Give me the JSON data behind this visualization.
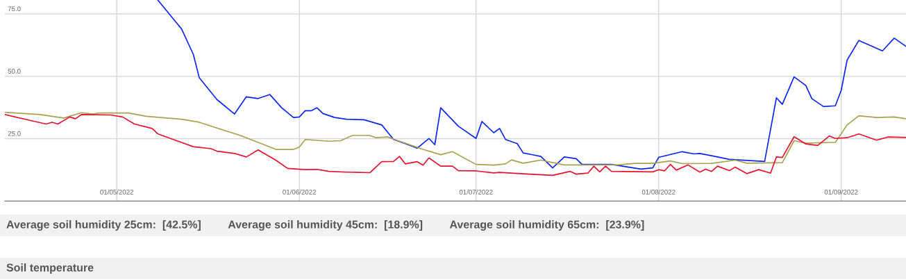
{
  "chart_data": {
    "type": "line",
    "xlim": [
      "2022-04-12",
      "2022-09-12"
    ],
    "xticks": [
      {
        "value": "2022-05-01",
        "label": "01/05/2022"
      },
      {
        "value": "2022-06-01",
        "label": "01/06/2022"
      },
      {
        "value": "2022-07-01",
        "label": "01/07/2022"
      },
      {
        "value": "2022-08-01",
        "label": "01/08/2022"
      },
      {
        "value": "2022-09-01",
        "label": "01/09/2022"
      }
    ],
    "ylim": [
      0,
      80.6
    ],
    "yticks": [
      {
        "value": 25,
        "label": "25.0"
      },
      {
        "value": 50,
        "label": "50.0"
      },
      {
        "value": 75,
        "label": "75.0"
      }
    ],
    "grid": true,
    "marker": "none",
    "line_style": "solid",
    "series": [
      {
        "color": "#0b24fb",
        "x": [
          "2022-05-08",
          "2022-05-12",
          "2022-05-14",
          "2022-05-15",
          "2022-05-18",
          "2022-05-21",
          "2022-05-23",
          "2022-05-25",
          "2022-05-27",
          "2022-05-29",
          "2022-05-31",
          "2022-06-01",
          "2022-06-02",
          "2022-06-03",
          "2022-06-04",
          "2022-06-05",
          "2022-06-07",
          "2022-06-09",
          "2022-06-12",
          "2022-06-15",
          "2022-06-17",
          "2022-06-19",
          "2022-06-21",
          "2022-06-23",
          "2022-06-24",
          "2022-06-25",
          "2022-06-28",
          "2022-07-01",
          "2022-07-02",
          "2022-07-04",
          "2022-07-05",
          "2022-07-06",
          "2022-07-08",
          "2022-07-09",
          "2022-07-12",
          "2022-07-14",
          "2022-07-16",
          "2022-07-18",
          "2022-07-19",
          "2022-07-23",
          "2022-07-24",
          "2022-07-29",
          "2022-07-31",
          "2022-08-01",
          "2022-08-05",
          "2022-08-07",
          "2022-08-08",
          "2022-08-11",
          "2022-08-13",
          "2022-08-16",
          "2022-08-19",
          "2022-08-21",
          "2022-08-22",
          "2022-08-24",
          "2022-08-26",
          "2022-08-27",
          "2022-08-29",
          "2022-08-31",
          "2022-09-01",
          "2022-09-02",
          "2022-09-04",
          "2022-09-08",
          "2022-09-10",
          "2022-09-12"
        ],
        "values": [
          80.5,
          69.0,
          58.8,
          49.5,
          40.7,
          34.9,
          41.8,
          41.1,
          42.7,
          37.4,
          33.5,
          33.7,
          36.2,
          36.2,
          37.4,
          35.1,
          33.5,
          32.8,
          32.6,
          30.5,
          24.7,
          23.0,
          21.2,
          25.1,
          22.6,
          37.4,
          30.0,
          25.1,
          31.9,
          27.4,
          29.1,
          24.7,
          23.0,
          19.3,
          17.9,
          13.3,
          17.7,
          17.0,
          14.7,
          14.7,
          14.7,
          12.8,
          13.3,
          17.5,
          19.8,
          18.9,
          19.1,
          17.7,
          16.7,
          16.3,
          15.9,
          41.4,
          38.8,
          49.8,
          46.3,
          41.1,
          37.9,
          38.2,
          44.4,
          56.5,
          64.4,
          60.2,
          65.3,
          62.0
        ]
      },
      {
        "color": "#a8a050",
        "x": [
          "2022-04-12",
          "2022-04-18",
          "2022-04-22",
          "2022-04-25",
          "2022-04-27",
          "2022-04-28",
          "2022-05-03",
          "2022-05-06",
          "2022-05-12",
          "2022-05-15",
          "2022-05-18",
          "2022-05-22",
          "2022-05-26",
          "2022-05-28",
          "2022-05-31",
          "2022-06-01",
          "2022-06-02",
          "2022-06-06",
          "2022-06-08",
          "2022-06-10",
          "2022-06-13",
          "2022-06-14",
          "2022-06-16",
          "2022-06-18",
          "2022-06-22",
          "2022-06-25",
          "2022-06-27",
          "2022-07-01",
          "2022-07-04",
          "2022-07-06",
          "2022-07-07",
          "2022-07-09",
          "2022-07-12",
          "2022-07-16",
          "2022-07-23",
          "2022-07-25",
          "2022-07-28",
          "2022-07-31",
          "2022-08-03",
          "2022-08-05",
          "2022-08-10",
          "2022-08-14",
          "2022-08-16",
          "2022-08-22",
          "2022-08-24",
          "2022-08-26",
          "2022-08-30",
          "2022-08-31",
          "2022-09-02",
          "2022-09-04",
          "2022-09-07",
          "2022-09-10",
          "2022-09-12"
        ],
        "values": [
          35.6,
          34.7,
          33.3,
          35.4,
          34.9,
          35.3,
          35.3,
          34.0,
          32.8,
          31.6,
          29.3,
          26.3,
          22.6,
          20.7,
          20.7,
          21.6,
          24.7,
          24.0,
          24.2,
          26.3,
          26.3,
          25.4,
          25.7,
          24.0,
          20.7,
          18.6,
          19.8,
          14.7,
          14.4,
          14.9,
          16.5,
          15.2,
          16.4,
          14.5,
          14.5,
          14.5,
          15.1,
          15.1,
          16.1,
          15.0,
          15.1,
          16.4,
          15.2,
          15.4,
          24.2,
          23.2,
          23.5,
          23.5,
          30.5,
          34.2,
          33.5,
          33.7,
          33.0
        ]
      },
      {
        "color": "#e8112d",
        "x": [
          "2022-04-12",
          "2022-04-16",
          "2022-04-19",
          "2022-04-20",
          "2022-04-21",
          "2022-04-23",
          "2022-04-24",
          "2022-04-25",
          "2022-04-30",
          "2022-05-02",
          "2022-05-04",
          "2022-05-07",
          "2022-05-08",
          "2022-05-12",
          "2022-05-14",
          "2022-05-17",
          "2022-05-18",
          "2022-05-21",
          "2022-05-23",
          "2022-05-25",
          "2022-05-28",
          "2022-05-30",
          "2022-06-02",
          "2022-06-04",
          "2022-06-06",
          "2022-06-09",
          "2022-06-13",
          "2022-06-15",
          "2022-06-17",
          "2022-06-18",
          "2022-06-19",
          "2022-06-21",
          "2022-06-22",
          "2022-06-23",
          "2022-06-25",
          "2022-06-27",
          "2022-06-28",
          "2022-07-01",
          "2022-07-04",
          "2022-07-05",
          "2022-07-10",
          "2022-07-14",
          "2022-07-17",
          "2022-07-18",
          "2022-07-20",
          "2022-07-21",
          "2022-07-22",
          "2022-07-23",
          "2022-07-24",
          "2022-07-31",
          "2022-08-01",
          "2022-08-02",
          "2022-08-03",
          "2022-08-04",
          "2022-08-06",
          "2022-08-08",
          "2022-08-09",
          "2022-08-10",
          "2022-08-11",
          "2022-08-13",
          "2022-08-14",
          "2022-08-16",
          "2022-08-18",
          "2022-08-20",
          "2022-08-21",
          "2022-08-22",
          "2022-08-24",
          "2022-08-26",
          "2022-08-28",
          "2022-08-30",
          "2022-08-31",
          "2022-09-02",
          "2022-09-04",
          "2022-09-07",
          "2022-09-09",
          "2022-09-12"
        ],
        "values": [
          34.7,
          32.5,
          30.9,
          31.6,
          30.9,
          33.7,
          33.0,
          34.7,
          34.5,
          33.7,
          30.9,
          29.1,
          26.9,
          23.5,
          21.8,
          21.0,
          20.0,
          19.1,
          17.7,
          20.5,
          16.4,
          13.1,
          12.6,
          12.7,
          11.9,
          11.6,
          11.4,
          15.8,
          15.9,
          17.9,
          14.9,
          15.8,
          14.4,
          17.3,
          14.0,
          14.0,
          12.2,
          12.1,
          11.3,
          11.5,
          10.8,
          10.3,
          11.9,
          10.8,
          11.2,
          14.0,
          11.7,
          14.0,
          11.9,
          11.7,
          12.6,
          12.1,
          14.7,
          12.4,
          14.5,
          11.6,
          12.8,
          11.9,
          14.0,
          12.2,
          13.6,
          11.0,
          12.6,
          11.2,
          17.7,
          17.5,
          25.8,
          22.9,
          22.3,
          26.1,
          25.1,
          25.4,
          26.9,
          24.4,
          25.7,
          25.5
        ]
      }
    ],
    "annotations": [
      "Average soil humidity 25cm:  [42.5%]",
      "Average soil humidity 45cm:  [18.9%]",
      "Average soil humidity 65cm:  [23.9%]",
      "Soil temperature"
    ]
  }
}
